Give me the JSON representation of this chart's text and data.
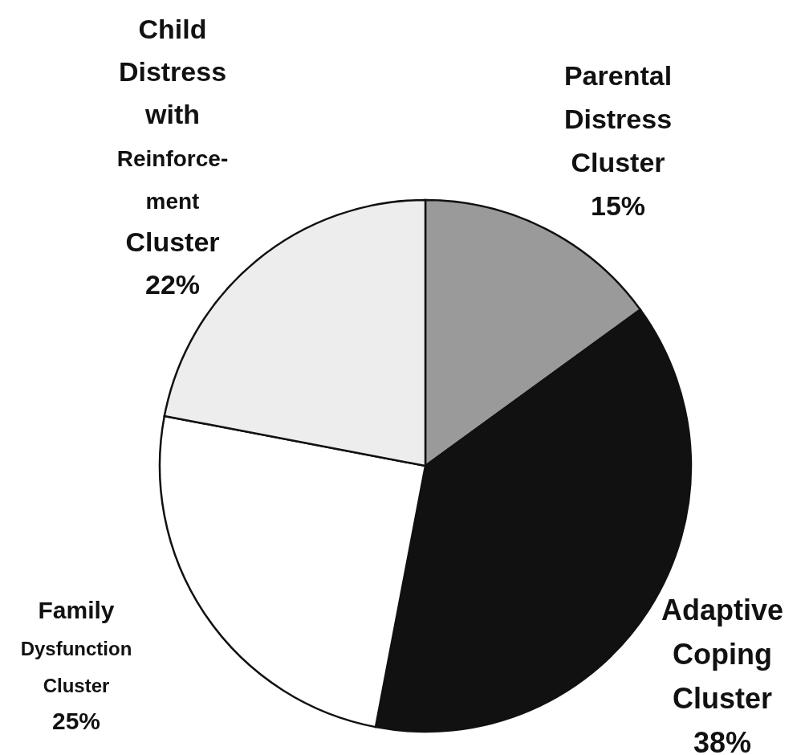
{
  "chart_data": {
    "type": "pie",
    "categories": [
      "Parental\nDistress\nCluster",
      "Adaptive\nCoping\nCluster",
      "Family\nDysfunction\nCluster",
      "Child\nDistress\nwith\nReinforce-\nment\nCluster"
    ],
    "values": [
      15,
      38,
      25,
      22
    ],
    "colors": [
      "#9a9a9a",
      "#111111",
      "#ffffff",
      "#ededed"
    ],
    "value_labels": [
      "15%",
      "38%",
      "25%",
      "22%"
    ]
  }
}
